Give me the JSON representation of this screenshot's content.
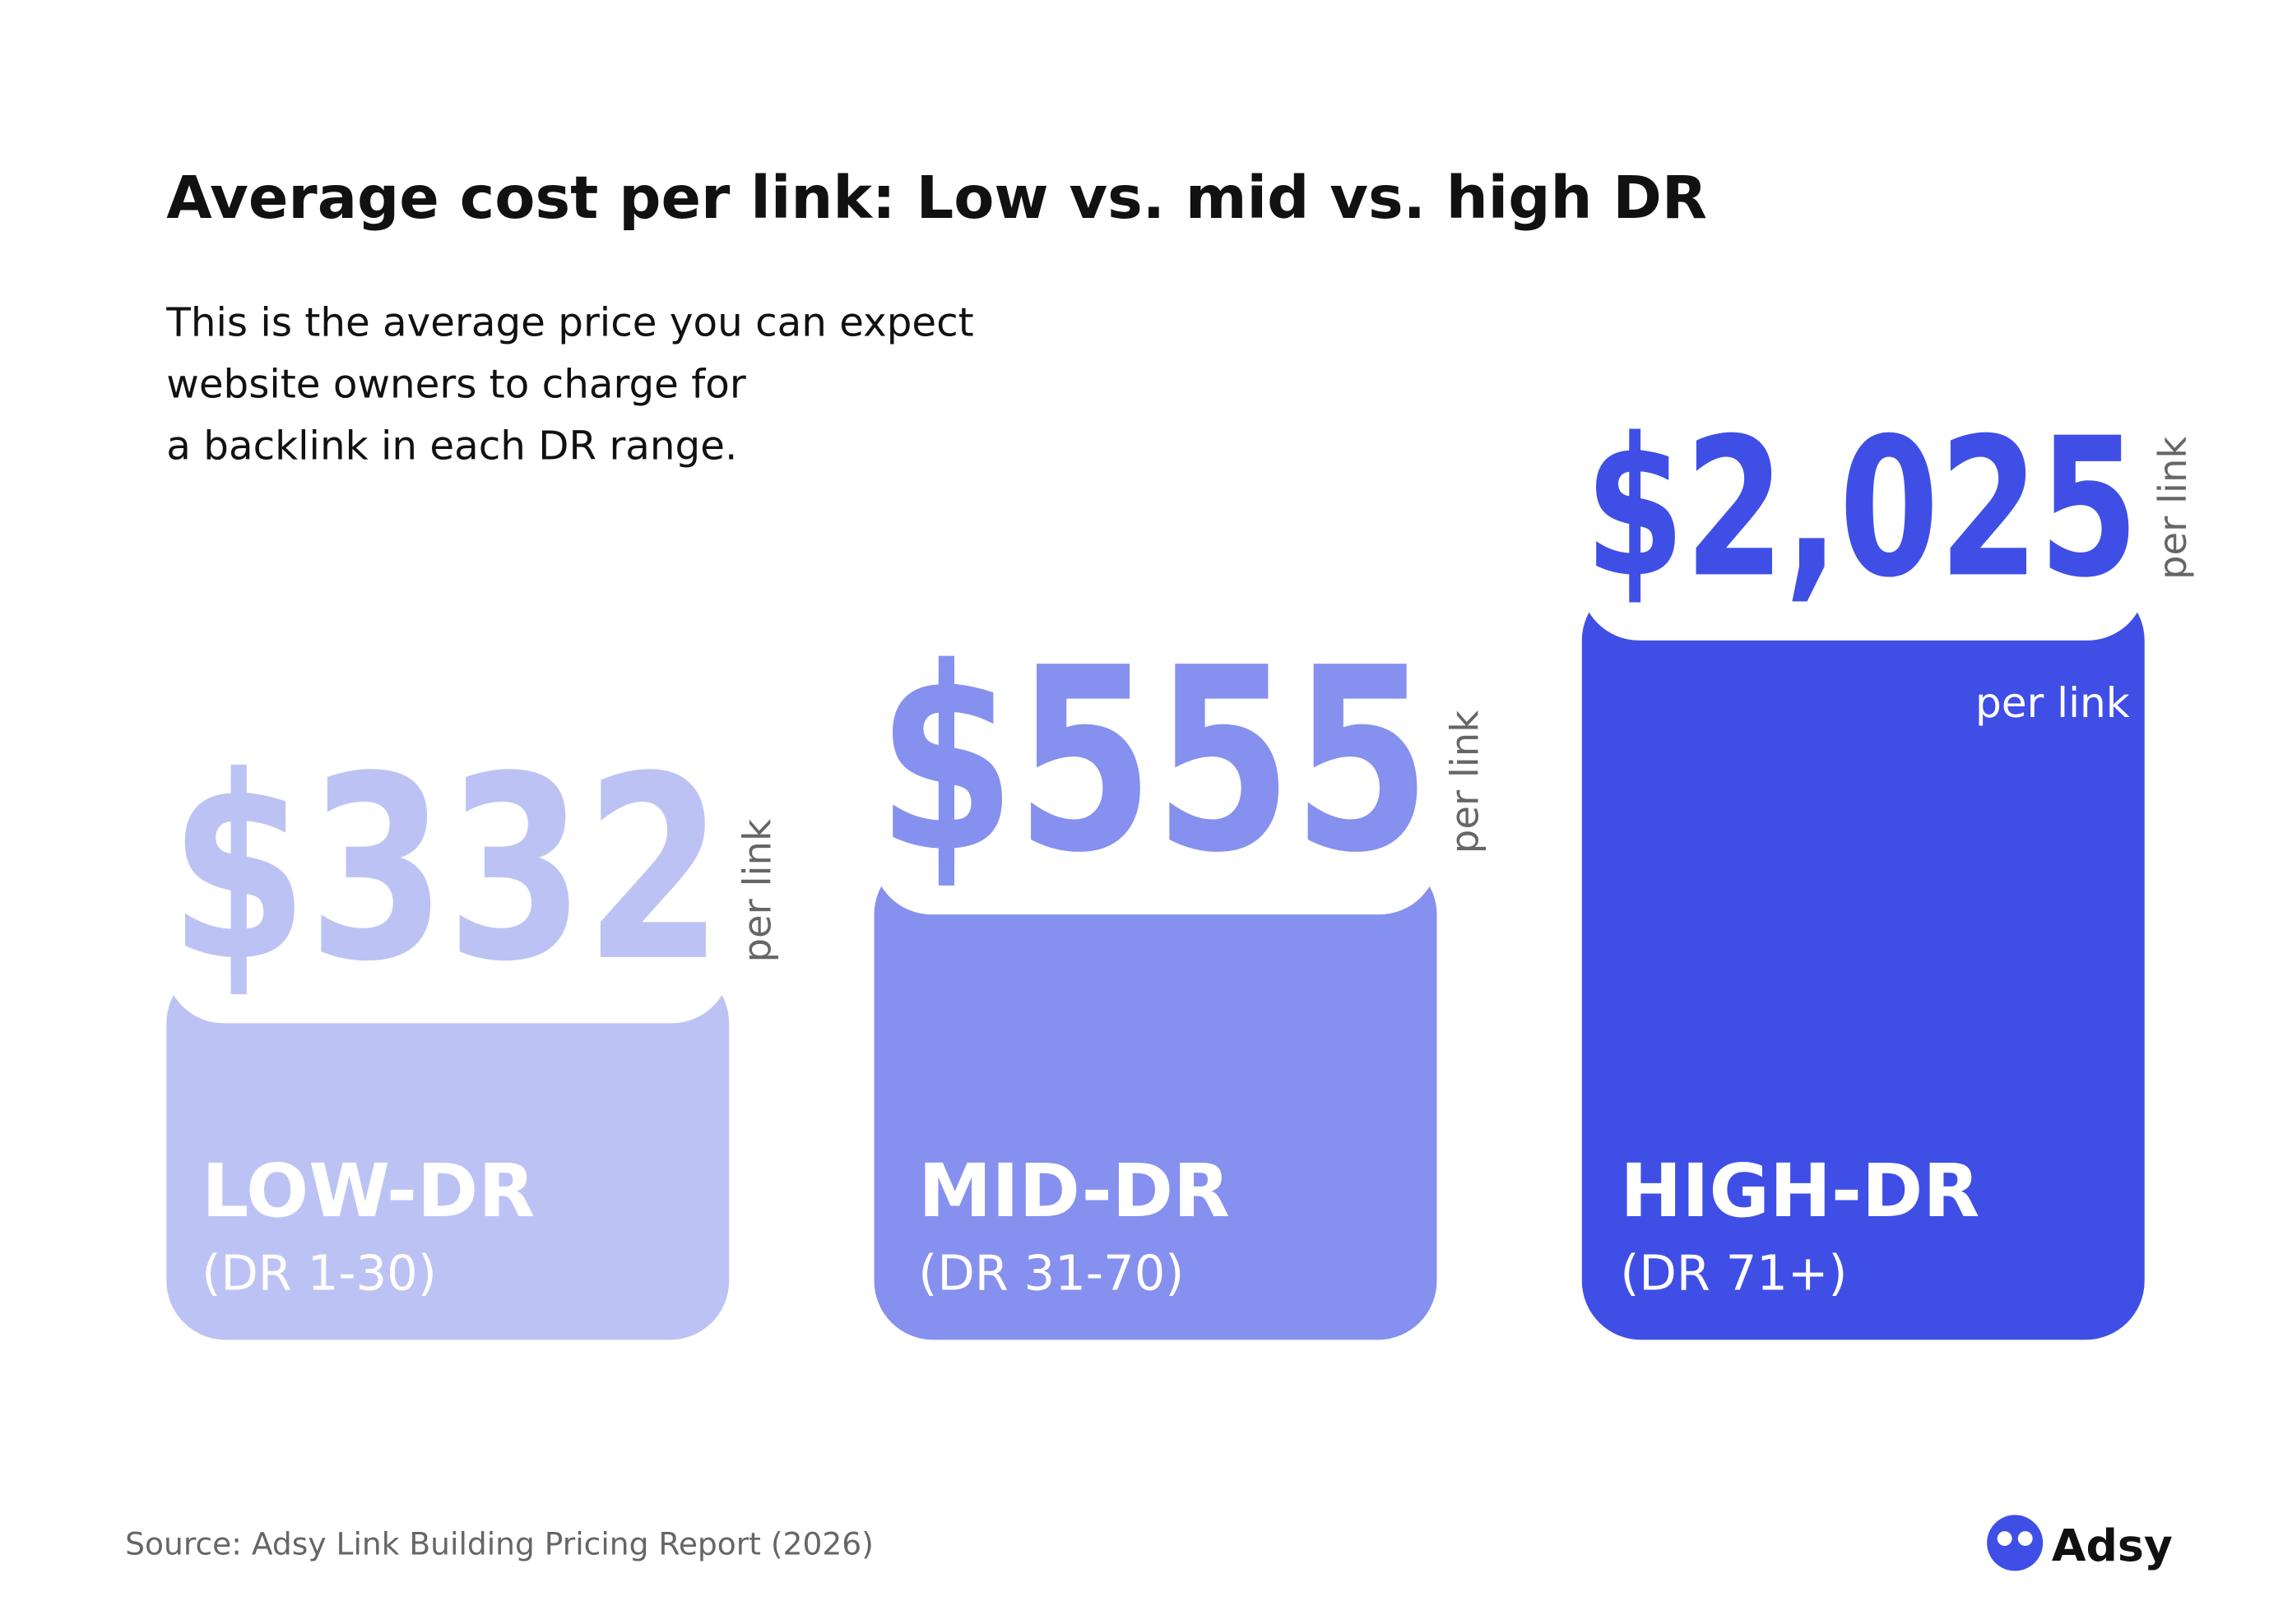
{
  "chart_data": {
    "type": "bar",
    "title": "Average cost per link: Low vs. mid vs. high DR",
    "subtitle": [
      "This is the average price you can expect",
      "website owners to charge for",
      "a backlink in each DR range."
    ],
    "categories": [
      "LOW-DR",
      "MID-DR",
      "HIGH-DR"
    ],
    "category_ranges": [
      "(DR 1-30)",
      "(DR 31-70)",
      "(DR 71+)"
    ],
    "values": [
      332,
      555,
      2025
    ],
    "value_labels": [
      "$332",
      "$555",
      "$2,025"
    ],
    "colors": [
      "#bcc3f4",
      "#8690ee",
      "#3f4fe6"
    ],
    "unit_label": "per link",
    "inner_unit_labels": [
      null,
      null,
      "per link"
    ],
    "source": "Source: Adsy Link Building Pricing Report (2026)",
    "brand": "Adsy"
  }
}
